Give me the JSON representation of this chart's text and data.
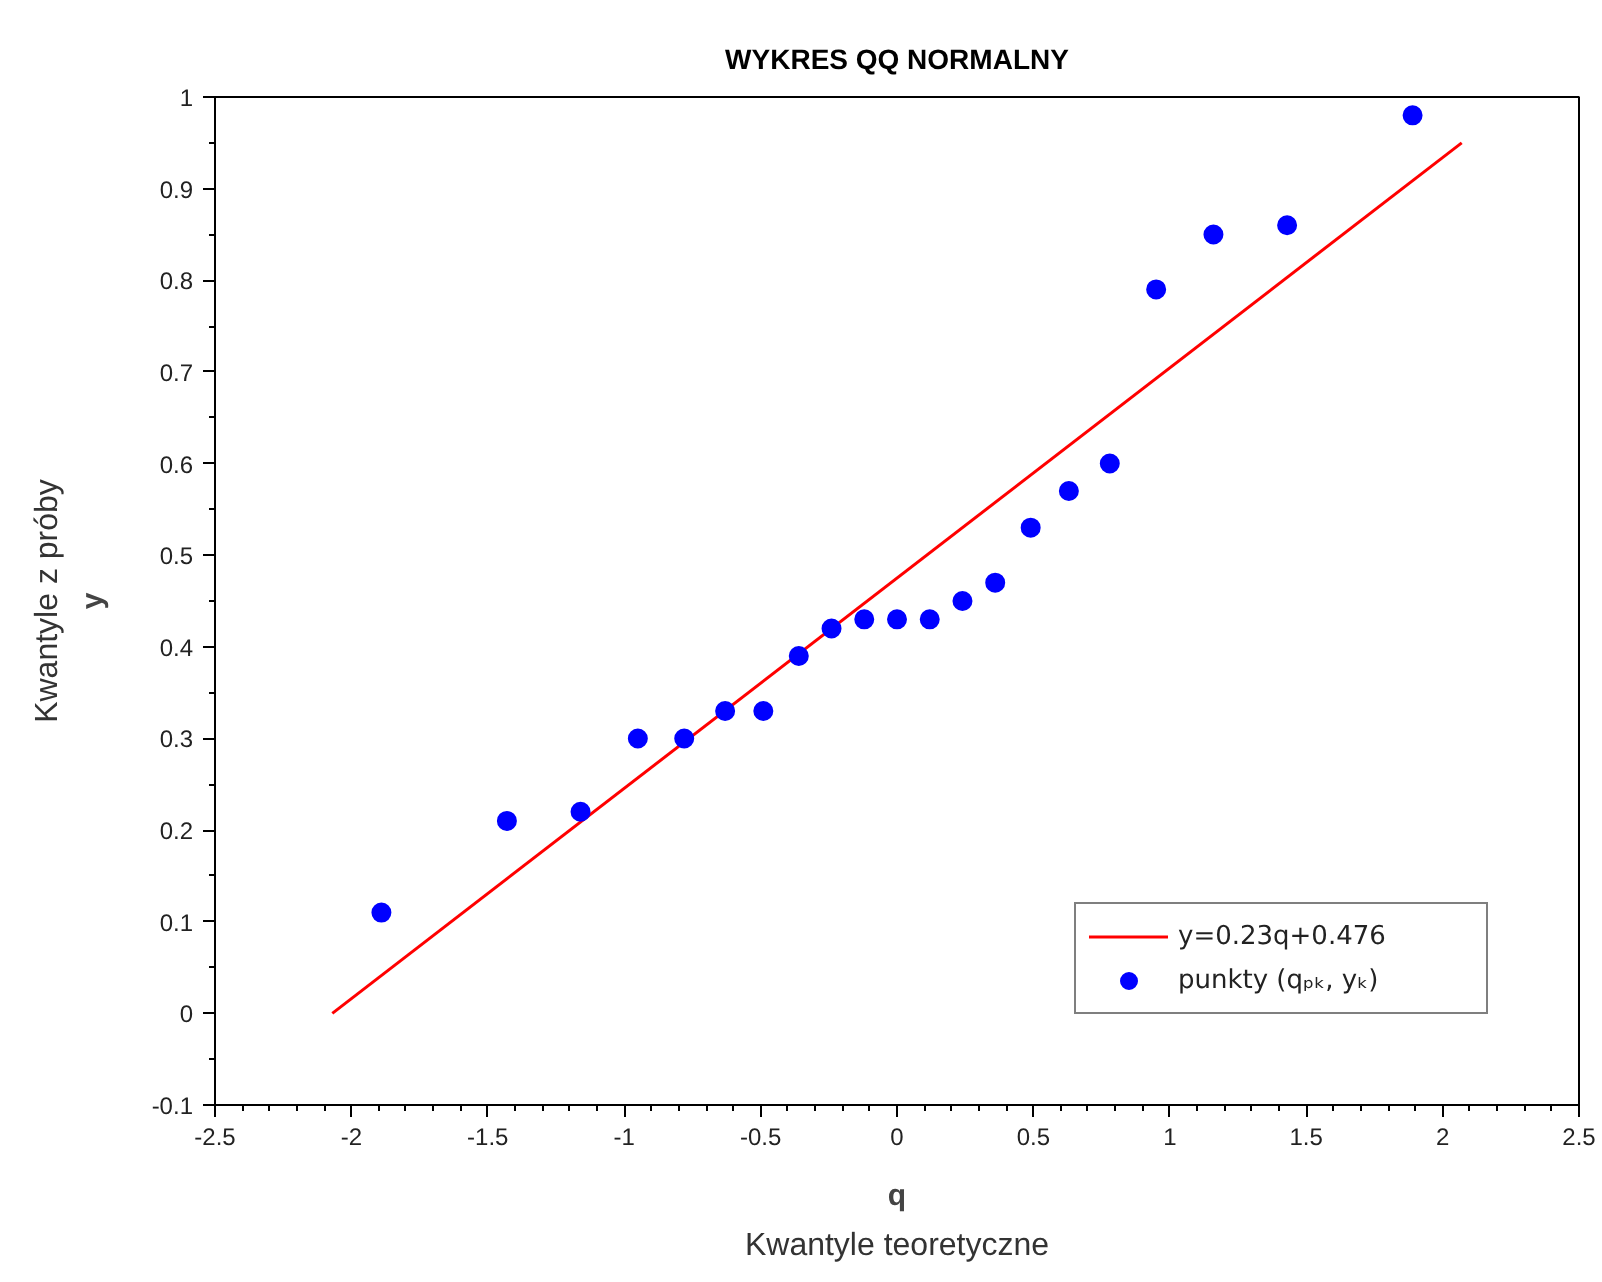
{
  "chart_data": {
    "type": "scatter",
    "title": "WYKRES QQ NORMALNY",
    "xlabel": "q\nKwantyle teoretyczne",
    "ylabel": "y\nKwantyle z próby",
    "xlim": [
      -2.5,
      2.5
    ],
    "ylim": [
      -0.1,
      1
    ],
    "xticks": [
      -2.5,
      -2,
      -1.5,
      -1,
      -0.5,
      0,
      0.5,
      1,
      1.5,
      2,
      2.5
    ],
    "yticks": [
      -0.1,
      0,
      0.1,
      0.2,
      0.3,
      0.4,
      0.5,
      0.6,
      0.7,
      0.8,
      0.9,
      1
    ],
    "grid": false,
    "legend": "bottom right",
    "series": [
      {
        "name": "y=0.23q+0.476",
        "type": "line",
        "color": "#ff0000",
        "x": [
          -2.07,
          2.07
        ],
        "values": [
          0.0,
          0.95
        ]
      },
      {
        "name": "punkty (qₚₖ, yₖ)",
        "color": "#0000ff",
        "marker": "circle",
        "x": [
          -1.89,
          -1.43,
          -1.16,
          -0.95,
          -0.78,
          -0.63,
          -0.49,
          -0.36,
          -0.24,
          -0.12,
          0,
          0.12,
          0.24,
          0.36,
          0.49,
          0.63,
          0.78,
          0.95,
          1.16,
          1.43,
          1.89
        ],
        "values": [
          0.11,
          0.21,
          0.22,
          0.3,
          0.3,
          0.33,
          0.33,
          0.39,
          0.42,
          0.43,
          0.43,
          0.43,
          0.45,
          0.47,
          0.53,
          0.57,
          0.6,
          0.79,
          0.85,
          0.86,
          0.98
        ]
      }
    ]
  }
}
